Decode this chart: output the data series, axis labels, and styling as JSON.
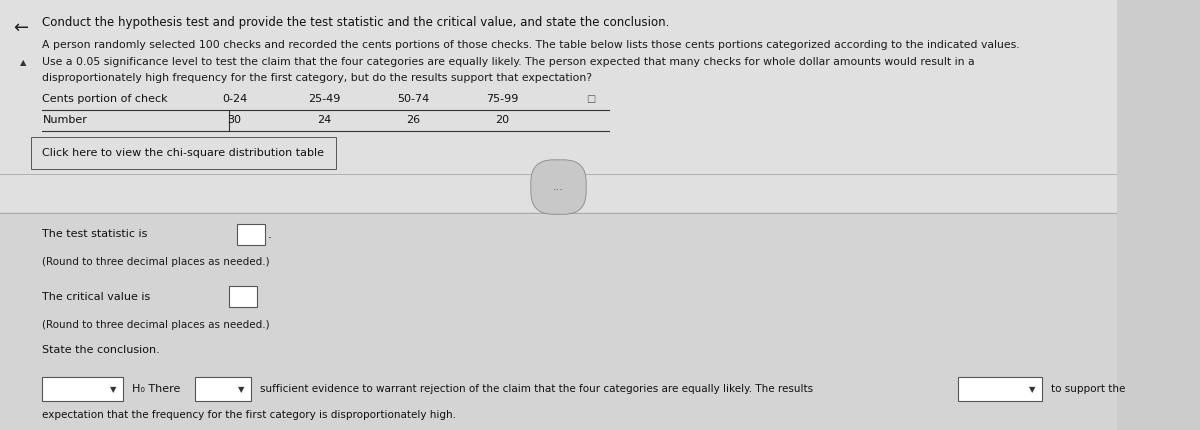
{
  "bg_color": "#cccccc",
  "upper_bg": "#e0e0e0",
  "lower_bg": "#d4d4d4",
  "title_line": "Conduct the hypothesis test and provide the test statistic and the critical value, and state the conclusion.",
  "para1": "A person randomly selected 100 checks and recorded the cents portions of those checks. The table below lists those cents portions categorized according to the indicated values.",
  "para2": "Use a 0.05 significance level to test the claim that the four categories are equally likely. The person expected that many checks for whole dollar amounts would result in a",
  "para3": "disproportionately high frequency for the first category, but do the results support that expectation?",
  "table_headers": [
    "Cents portion of check",
    "0-24",
    "25-49",
    "50-74",
    "75-99"
  ],
  "table_row_label": "Number",
  "table_values": [
    "30",
    "24",
    "26",
    "20"
  ],
  "link_text": "Click here to view the chi-square distribution table",
  "test_stat_label": "The test statistic is",
  "test_stat_note": "(Round to three decimal places as needed.)",
  "critical_val_label": "The critical value is",
  "critical_val_note": "(Round to three decimal places as needed.)",
  "conclusion_label": "State the conclusion.",
  "conclusion_line1": "sufficient evidence to warrant rejection of the claim that the four categories are equally likely. The results",
  "conclusion_line2": "expectation that the frequency for the first category is disproportionately high.",
  "h0_label": "H₀ There",
  "to_support": "to support the",
  "dots_label": "..."
}
